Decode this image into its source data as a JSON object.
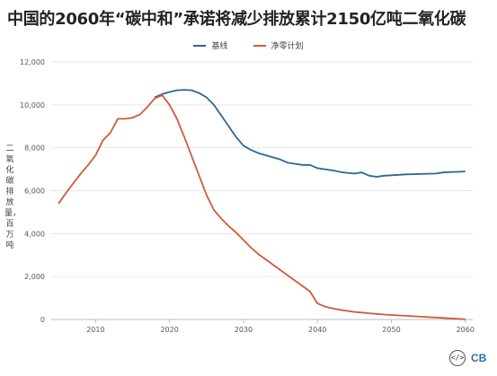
{
  "title": "中国的2060年“碳中和”承诺将减少排放累计2150亿吨二氧化碳",
  "legend": [
    {
      "name": "基线",
      "color": "#2d6696"
    },
    {
      "name": "净零计划",
      "color": "#d05a3a"
    }
  ],
  "footer": {
    "embed_icon": "</>",
    "logo_text": "CB"
  },
  "chart_data": {
    "type": "line",
    "title": "中国的2060年“碳中和”承诺将减少排放累计2150亿吨二氧化碳",
    "ylabel": "二氧化碳排放量，百万吨",
    "xlabel": "",
    "xlim": [
      2004,
      2061
    ],
    "ylim": [
      0,
      12000
    ],
    "xticks": [
      2010,
      2020,
      2030,
      2040,
      2050,
      2060
    ],
    "yticks": [
      0,
      2000,
      4000,
      6000,
      8000,
      10000,
      12000
    ],
    "ytick_labels": [
      "0",
      "2,000",
      "4,000",
      "6,000",
      "8,000",
      "10,000",
      "12,000"
    ],
    "grid": "horizontal",
    "legend_position": "top",
    "series": [
      {
        "name": "基线",
        "color": "#2d6696",
        "x": [
          2018,
          2019,
          2020,
          2021,
          2022,
          2023,
          2024,
          2025,
          2026,
          2027,
          2028,
          2029,
          2030,
          2031,
          2032,
          2033,
          2034,
          2035,
          2036,
          2037,
          2038,
          2039,
          2040,
          2041,
          2042,
          2043,
          2044,
          2045,
          2046,
          2047,
          2048,
          2049,
          2050,
          2051,
          2052,
          2053,
          2054,
          2055,
          2056,
          2057,
          2058,
          2059,
          2060
        ],
        "values": [
          10350,
          10500,
          10600,
          10680,
          10700,
          10680,
          10550,
          10350,
          10000,
          9500,
          9000,
          8500,
          8100,
          7900,
          7750,
          7650,
          7550,
          7450,
          7300,
          7250,
          7200,
          7200,
          7050,
          7000,
          6950,
          6880,
          6830,
          6800,
          6850,
          6700,
          6650,
          6700,
          6720,
          6740,
          6760,
          6770,
          6780,
          6790,
          6800,
          6850,
          6870,
          6880,
          6900
        ]
      },
      {
        "name": "净零计划",
        "color": "#d05a3a",
        "x": [
          2005,
          2006,
          2007,
          2008,
          2009,
          2010,
          2011,
          2012,
          2013,
          2014,
          2015,
          2016,
          2017,
          2018,
          2019,
          2020,
          2021,
          2022,
          2023,
          2024,
          2025,
          2026,
          2027,
          2028,
          2029,
          2030,
          2031,
          2032,
          2033,
          2034,
          2035,
          2036,
          2037,
          2038,
          2039,
          2040,
          2041,
          2042,
          2043,
          2044,
          2045,
          2046,
          2047,
          2048,
          2049,
          2050,
          2051,
          2052,
          2053,
          2054,
          2055,
          2056,
          2057,
          2058,
          2059,
          2060
        ],
        "values": [
          5400,
          5900,
          6350,
          6800,
          7200,
          7650,
          8350,
          8700,
          9350,
          9350,
          9400,
          9550,
          9900,
          10300,
          10450,
          10000,
          9350,
          8500,
          7600,
          6700,
          5800,
          5100,
          4700,
          4350,
          4050,
          3700,
          3350,
          3050,
          2800,
          2550,
          2300,
          2050,
          1800,
          1550,
          1300,
          750,
          600,
          520,
          450,
          400,
          350,
          320,
          290,
          260,
          230,
          210,
          190,
          170,
          150,
          130,
          110,
          90,
          70,
          50,
          30,
          10
        ]
      }
    ]
  }
}
